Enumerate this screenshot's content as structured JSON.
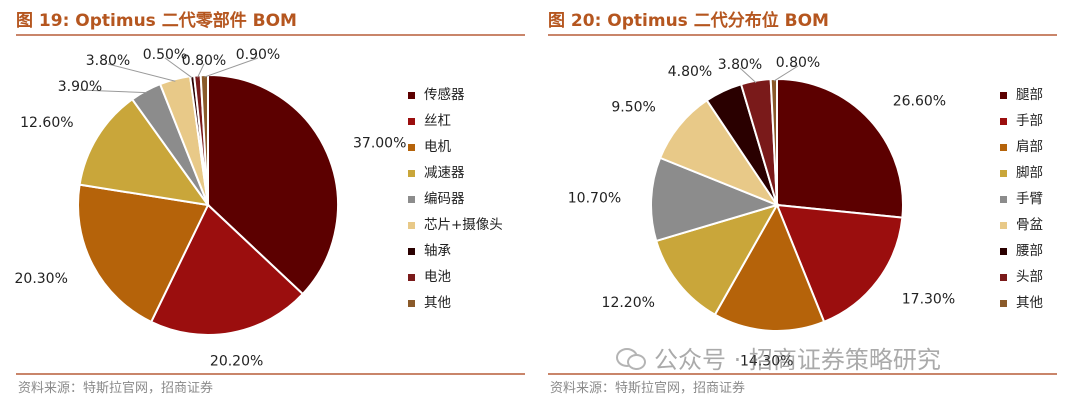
{
  "chart_data": [
    {
      "type": "pie",
      "title": "图 19:  Optimus 二代零部件 BOM",
      "slices": [
        {
          "label": "传感器",
          "value": 37.0,
          "display": "37.00%",
          "color": "#5c0000"
        },
        {
          "label": "丝杠",
          "value": 20.2,
          "display": "20.20%",
          "color": "#9b0e0e"
        },
        {
          "label": "电机",
          "value": 20.3,
          "display": "20.30%",
          "color": "#b5630a"
        },
        {
          "label": "减速器",
          "value": 12.6,
          "display": "12.60%",
          "color": "#c9a63a"
        },
        {
          "label": "编码器",
          "value": 3.9,
          "display": "3.90%",
          "color": "#8c8c8c"
        },
        {
          "label": "芯片+摄像头",
          "value": 3.8,
          "display": "3.80%",
          "color": "#e8c988"
        },
        {
          "label": "轴承",
          "value": 0.5,
          "display": "0.50%",
          "color": "#2a0000"
        },
        {
          "label": "电池",
          "value": 0.8,
          "display": "0.80%",
          "color": "#7a1a1a"
        },
        {
          "label": "其他",
          "value": 0.9,
          "display": "0.90%",
          "color": "#8a5a2a"
        }
      ],
      "source": "资料来源：特斯拉官网，招商证券"
    },
    {
      "type": "pie",
      "title": "图 20:  Optimus 二代分布位 BOM",
      "slices": [
        {
          "label": "腿部",
          "value": 26.6,
          "display": "26.60%",
          "color": "#5c0000"
        },
        {
          "label": "手部",
          "value": 17.3,
          "display": "17.30%",
          "color": "#9b0e0e"
        },
        {
          "label": "肩部",
          "value": 14.3,
          "display": "14.30%",
          "color": "#b5630a"
        },
        {
          "label": "脚部",
          "value": 12.2,
          "display": "12.20%",
          "color": "#c9a63a"
        },
        {
          "label": "手臂",
          "value": 10.7,
          "display": "10.70%",
          "color": "#8c8c8c"
        },
        {
          "label": "骨盆",
          "value": 9.5,
          "display": "9.50%",
          "color": "#e8c988"
        },
        {
          "label": "腰部",
          "value": 4.8,
          "display": "4.80%",
          "color": "#2a0000"
        },
        {
          "label": "头部",
          "value": 3.8,
          "display": "3.80%",
          "color": "#7a1a1a"
        },
        {
          "label": "其他",
          "value": 0.8,
          "display": "0.80%",
          "color": "#8a5a2a"
        }
      ],
      "source": "资料来源：特斯拉官网，招商证券"
    }
  ],
  "watermark": "公众号 · 招商证券策略研究"
}
